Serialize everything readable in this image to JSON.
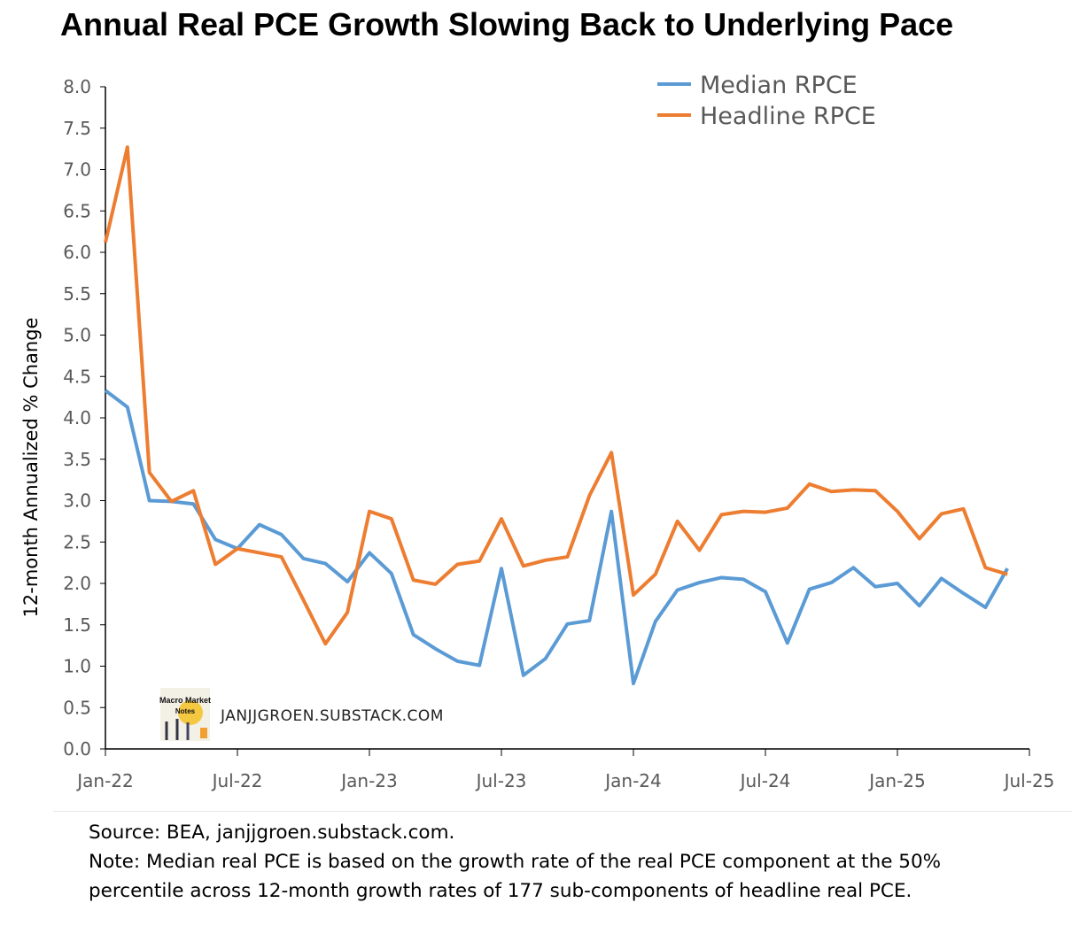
{
  "chart_data": {
    "type": "line",
    "title": "Annual Real PCE Growth Slowing Back to Underlying Pace",
    "xlabel": "",
    "ylabel": "12-month Annualized % Change",
    "ylim": [
      0,
      8
    ],
    "yticks": [
      "0.0",
      "0.5",
      "1.0",
      "1.5",
      "2.0",
      "2.5",
      "3.0",
      "3.5",
      "4.0",
      "4.5",
      "5.0",
      "5.5",
      "6.0",
      "6.5",
      "7.0",
      "7.5",
      "8.0"
    ],
    "xtick_labels": [
      "Jan-22",
      "Jul-22",
      "Jan-23",
      "Jul-23",
      "Jan-24",
      "Jul-24",
      "Jan-25",
      "Jul-25"
    ],
    "x_start": "Jan-22",
    "x_months_span": 42,
    "legend_position": "top-right",
    "series": [
      {
        "name": "Median RPCE",
        "color": "#5b9bd5",
        "values": [
          4.33,
          4.13,
          3.0,
          2.99,
          2.96,
          2.53,
          2.42,
          2.71,
          2.59,
          2.3,
          2.24,
          2.02,
          2.37,
          2.12,
          1.38,
          1.21,
          1.06,
          1.01,
          2.18,
          0.89,
          1.09,
          1.51,
          1.55,
          2.87,
          0.79,
          1.54,
          1.92,
          2.01,
          2.07,
          2.05,
          1.9,
          1.28,
          1.93,
          2.01,
          2.19,
          1.96,
          2.0,
          1.73,
          2.06,
          1.88,
          1.71,
          2.18
        ]
      },
      {
        "name": "Headline RPCE",
        "color": "#ed7d31",
        "values": [
          6.12,
          7.27,
          3.34,
          2.99,
          3.12,
          2.23,
          2.42,
          2.37,
          2.32,
          1.8,
          1.27,
          1.65,
          2.87,
          2.78,
          2.04,
          1.99,
          2.23,
          2.27,
          2.78,
          2.21,
          2.28,
          2.32,
          3.06,
          3.58,
          1.86,
          2.11,
          2.75,
          2.4,
          2.83,
          2.87,
          2.86,
          2.91,
          3.2,
          3.11,
          3.13,
          3.12,
          2.87,
          2.54,
          2.84,
          2.9,
          2.19,
          2.11
        ]
      }
    ]
  },
  "watermark": {
    "logo_text": "Macro Market Notes",
    "url": "JANJJGROEN.SUBSTACK.COM"
  },
  "notes": {
    "source": "Source: BEA, janjjgroen.substack.com.",
    "note": "Note: Median real PCE is based on the growth rate of the real PCE component at the 50% percentile across 12-month growth rates of 177 sub-components of headline real PCE."
  }
}
